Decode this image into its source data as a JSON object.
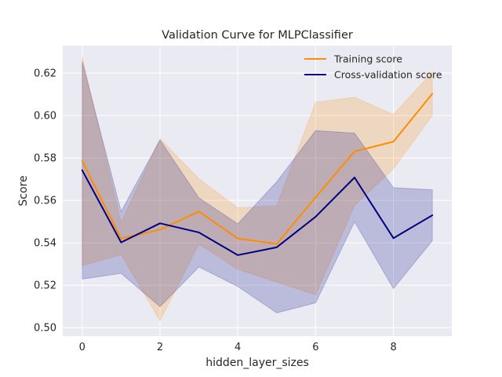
{
  "chart_data": {
    "type": "line",
    "title": "Validation Curve for MLPClassifier",
    "xlabel": "hidden_layer_sizes",
    "ylabel": "Score",
    "x": [
      0,
      1,
      2,
      3,
      4,
      5,
      6,
      7,
      8,
      9
    ],
    "xlim": [
      -0.5,
      9.5
    ],
    "ylim": [
      0.496,
      0.633
    ],
    "xticks": [
      0,
      2,
      4,
      6,
      8
    ],
    "xtick_labels": [
      "0",
      "2",
      "4",
      "6",
      "8"
    ],
    "yticks": [
      0.5,
      0.52,
      0.54,
      0.56,
      0.58,
      0.6,
      0.62
    ],
    "ytick_labels": [
      "0.50",
      "0.52",
      "0.54",
      "0.56",
      "0.58",
      "0.60",
      "0.62"
    ],
    "grid": true,
    "legend_position": "top-right",
    "series": [
      {
        "name": "Training score",
        "color": "#ff8c00",
        "values": [
          0.5785,
          0.542,
          0.5462,
          0.5548,
          0.542,
          0.5395,
          0.5615,
          0.5831,
          0.5877,
          0.6103
        ],
        "band_upper": [
          0.6278,
          0.5495,
          0.5891,
          0.5702,
          0.5565,
          0.5575,
          0.6063,
          0.6086,
          0.6005,
          0.6205
        ],
        "band_lower": [
          0.5292,
          0.5345,
          0.5033,
          0.5394,
          0.5275,
          0.5215,
          0.5155,
          0.5576,
          0.5749,
          0.6001
        ]
      },
      {
        "name": "Cross-validation score",
        "color": "#000080",
        "values": [
          0.5742,
          0.5402,
          0.5492,
          0.5449,
          0.5342,
          0.5379,
          0.5523,
          0.5708,
          0.5422,
          0.553
        ],
        "band_upper": [
          0.6255,
          0.5548,
          0.5885,
          0.5612,
          0.549,
          0.5688,
          0.5929,
          0.5917,
          0.566,
          0.565
        ],
        "band_lower": [
          0.5229,
          0.5256,
          0.5099,
          0.5286,
          0.5194,
          0.507,
          0.5117,
          0.5499,
          0.5184,
          0.541
        ]
      }
    ]
  }
}
